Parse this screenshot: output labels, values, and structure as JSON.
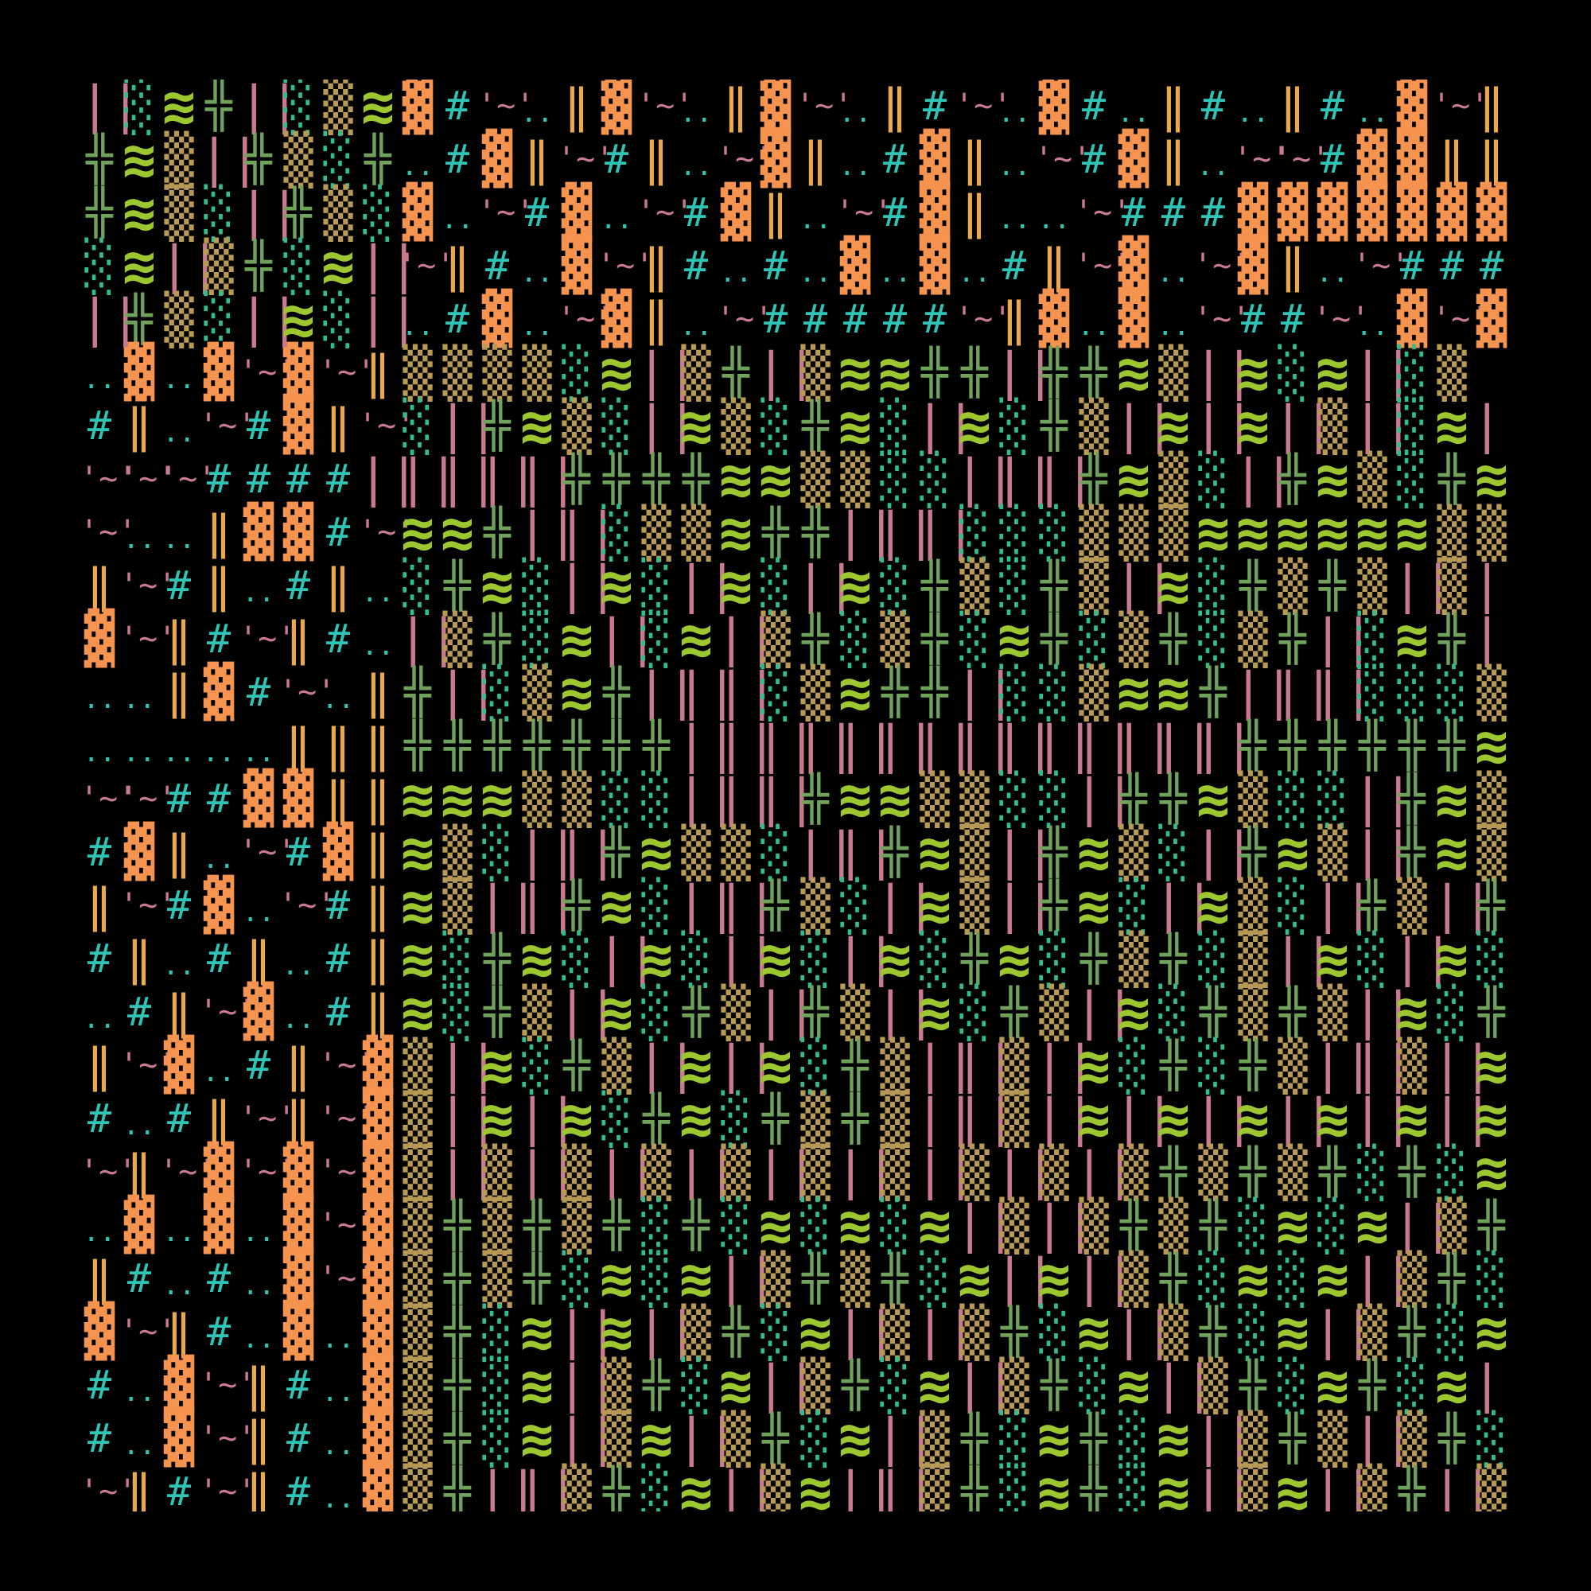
{
  "background": "#000000",
  "palette": {
    "cyan": "#2ec4b6",
    "amber": "#e9a94c",
    "pink": "#c97a8f",
    "orange": "#f5934f",
    "green": "#6fa35a",
    "lime": "#9cc72e",
    "tan": "#b89a55",
    "teal_dots": "#2fbf8f"
  },
  "glyphs": {
    "#": {
      "char": "#",
      "color": "#2ec4b6",
      "cls": "g-hash",
      "name": "hash-glyph"
    },
    ".": {
      "char": "..",
      "color": "#2ec4b6",
      "cls": "g-dots",
      "name": "dots-glyph"
    },
    "I": {
      "char": "‖",
      "color": "#e9a94c",
      "cls": "g-bar",
      "name": "double-bar-glyph"
    },
    "~": {
      "char": "'~'",
      "color": "#c97a8f",
      "cls": "g-tilde",
      "name": "tilde-glyph"
    },
    "B": {
      "char": "▓",
      "color": "#f5934f",
      "cls": "g-block",
      "name": "orange-block-glyph"
    },
    "|": {
      "char": "||",
      "color": "#c97a8f",
      "cls": "g-pipes",
      "name": "pipes-glyph"
    },
    "+": {
      "char": "╬",
      "color": "#6fa35a",
      "cls": "g-cross",
      "name": "cross-glyph"
    },
    "W": {
      "char": "≋",
      "color": "#9cc72e",
      "cls": "g-wave",
      "name": "wave-glyph"
    },
    "S": {
      "char": "▒",
      "color": "#b89a55",
      "cls": "g-shade",
      "name": "shade-glyph"
    },
    "D": {
      "char": "░",
      "color": "#2fbf8f",
      "cls": "g-shade",
      "name": "dotted-shade-glyph"
    },
    " ": {
      "char": "",
      "color": "#000000",
      "cls": "",
      "name": "empty-cell"
    }
  },
  "rows": [
    "|DW+|DSWB#~.IB~.IB~.I#~.B#.I#.I#.B~I#",
    "+WS|+SD+.#BI~#I.~BI.#BI.~#BI.~~#BBII",
    "+WSD|+SDB.~#B.~#BI.~#BI..~###BBBBBBB#",
    "DW|S+DW|~I#.B~I#.#.B.B.#I~B.~BI.~####",
    "|+SD|WD|.#B.~BI.~#####~IB.B.~##~.B~B",
    ".B.B~B~ISSSSDW|S+|SWW++|++WS|WDW|DS",
    "#I.~#BI~D|+WSD|WSD+WD|WD+S|W|W|S|DW|D",
    "~~~####|||||++++WWSSDD|||+WSD|+WSD+WD+",
    "~..IBB#~WW+||DSSW++|||DDDSSSWWWWWWSSSD",
    "I~#I.#I.D+WD|WD|WD|WD+SD+S|WD+S+S|S|S",
    "B~I#~I#.|S+DW|DW|S+DS+DW+DS+DS+|DW+|D",
    "..IB#~.I+|DSW+|||DSW++|DDSWW+|||DDDSSW",
    ".....III+++++++||||||||||||||++++++WWWSS",
    "~~##BBIIWWWSSDD|||+WWSSDD|++WSDD|+WSD|",
    "#BI.~#BIWSD||+WSSD||+WS|+WSD|+WS|+WS|+W",
    "I~#B.~#IWS||+WD||+SD|WS|+WD|WSD|+S|+SD+S",
    "#I.#I.#IWD+WD|WD|WD|WD+WD+S+DS|WD|WD+",
    ".#I~B.#IWD+S|WD+S|+S|WD+S|WD+S+S|WD+D",
    "I~B.#I~BS|WD+S|W|WD+S||S|WD+D+S||S|WD",
    "#.#I~I~BS|W|WD+WD+S+S||S|W|W|W|W|W|WD",
    "~I~B~B~BS|S|S|S|S|S|S|S|S|S+S+S+D+DWD",
    ".B.B.B~BS+S+S+D+DWDWDW|S|S+S+DWDW|S+D",
    "I#.#.B~BS+S+DWDW|S+S+DW|W|S+DWDW|S+DW",
    "B~I#.B.BS+DW|W|S+DW|S|S+DW|S+DW|S+DW|",
    "#.B~I#.BS+DW|S+DW|S+DW|S+DW|S+DW+DW|S",
    "#.B~I#.BS+DW|SW|S+DW|S+DW+DW|S+S|S+DW+",
    "~I#~I#.BS+||S+DW|SW||S+DW+DW|SW|S+|S|S"
  ]
}
